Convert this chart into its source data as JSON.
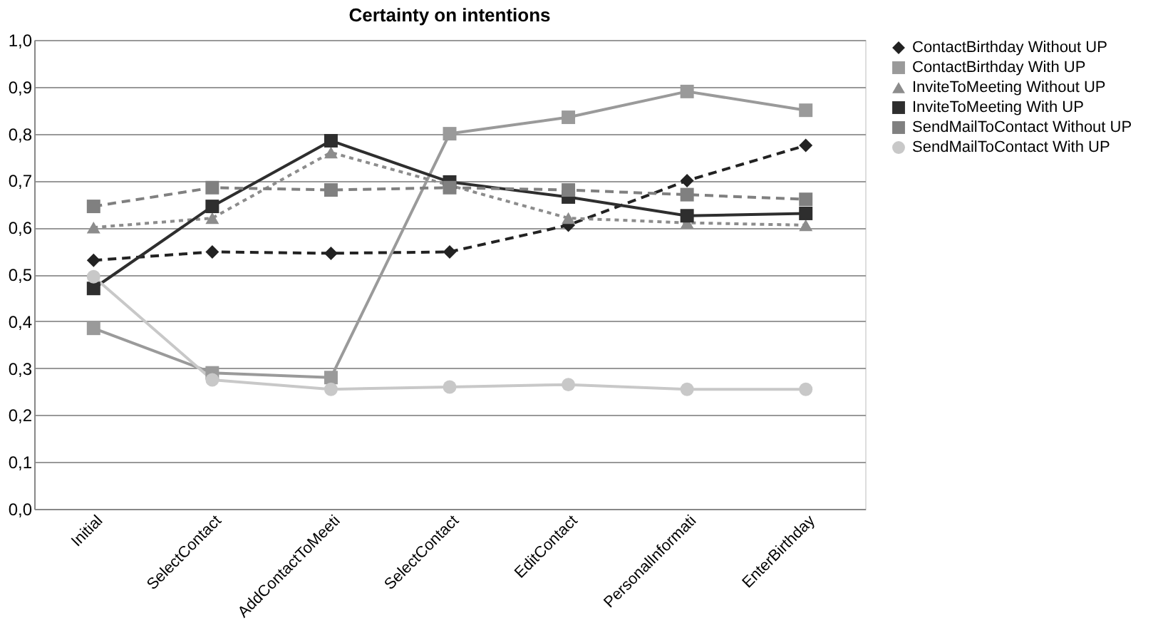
{
  "chart_data": {
    "type": "line",
    "title": "Certainty on intentions",
    "categories": [
      "Initial",
      "SelectContact",
      "AddContactToMeeti",
      "SelectContact",
      "EditContact",
      "PersonalInformati",
      "EnterBirthday"
    ],
    "ylim": [
      0,
      1
    ],
    "yticks": [
      {
        "value": 0,
        "label": "0,0"
      },
      {
        "value": 0.1,
        "label": "0,1"
      },
      {
        "value": 0.2,
        "label": "0,2"
      },
      {
        "value": 0.3,
        "label": "0,3"
      },
      {
        "value": 0.4,
        "label": "0,4"
      },
      {
        "value": 0.5,
        "label": "0,5"
      },
      {
        "value": 0.6,
        "label": "0,6"
      },
      {
        "value": 0.7,
        "label": "0,7"
      },
      {
        "value": 0.8,
        "label": "0,8"
      },
      {
        "value": 0.9,
        "label": "0,9"
      },
      {
        "value": 1,
        "label": "1,0"
      }
    ],
    "grid": "y",
    "legend": "right",
    "series": [
      {
        "name": "ContactBirthday Without UP",
        "color": "#222222",
        "marker": "diamond",
        "line_style": "dashed",
        "values": [
          0.53,
          0.548,
          0.545,
          0.548,
          0.605,
          0.7,
          0.775
        ]
      },
      {
        "name": "ContactBirthday With UP",
        "color": "#9a9a9a",
        "marker": "square",
        "line_style": "solid",
        "values": [
          0.385,
          0.29,
          0.28,
          0.8,
          0.835,
          0.89,
          0.85
        ]
      },
      {
        "name": "InviteToMeeting Without UP",
        "color": "#8c8c8c",
        "marker": "triangle",
        "line_style": "dotted",
        "values": [
          0.6,
          0.62,
          0.76,
          0.69,
          0.62,
          0.61,
          0.605
        ]
      },
      {
        "name": "InviteToMeeting With UP",
        "color": "#2e2e2e",
        "marker": "square",
        "line_style": "solid",
        "values": [
          0.47,
          0.645,
          0.785,
          0.697,
          0.665,
          0.625,
          0.63
        ]
      },
      {
        "name": "SendMailToContact Without UP",
        "color": "#808080",
        "marker": "square",
        "line_style": "dashed",
        "values": [
          0.645,
          0.685,
          0.68,
          0.685,
          0.68,
          0.67,
          0.66
        ]
      },
      {
        "name": "SendMailToContact With UP",
        "color": "#c8c8c8",
        "marker": "circle",
        "line_style": "solid",
        "values": [
          0.495,
          0.275,
          0.255,
          0.26,
          0.265,
          0.255,
          0.255
        ]
      }
    ]
  }
}
